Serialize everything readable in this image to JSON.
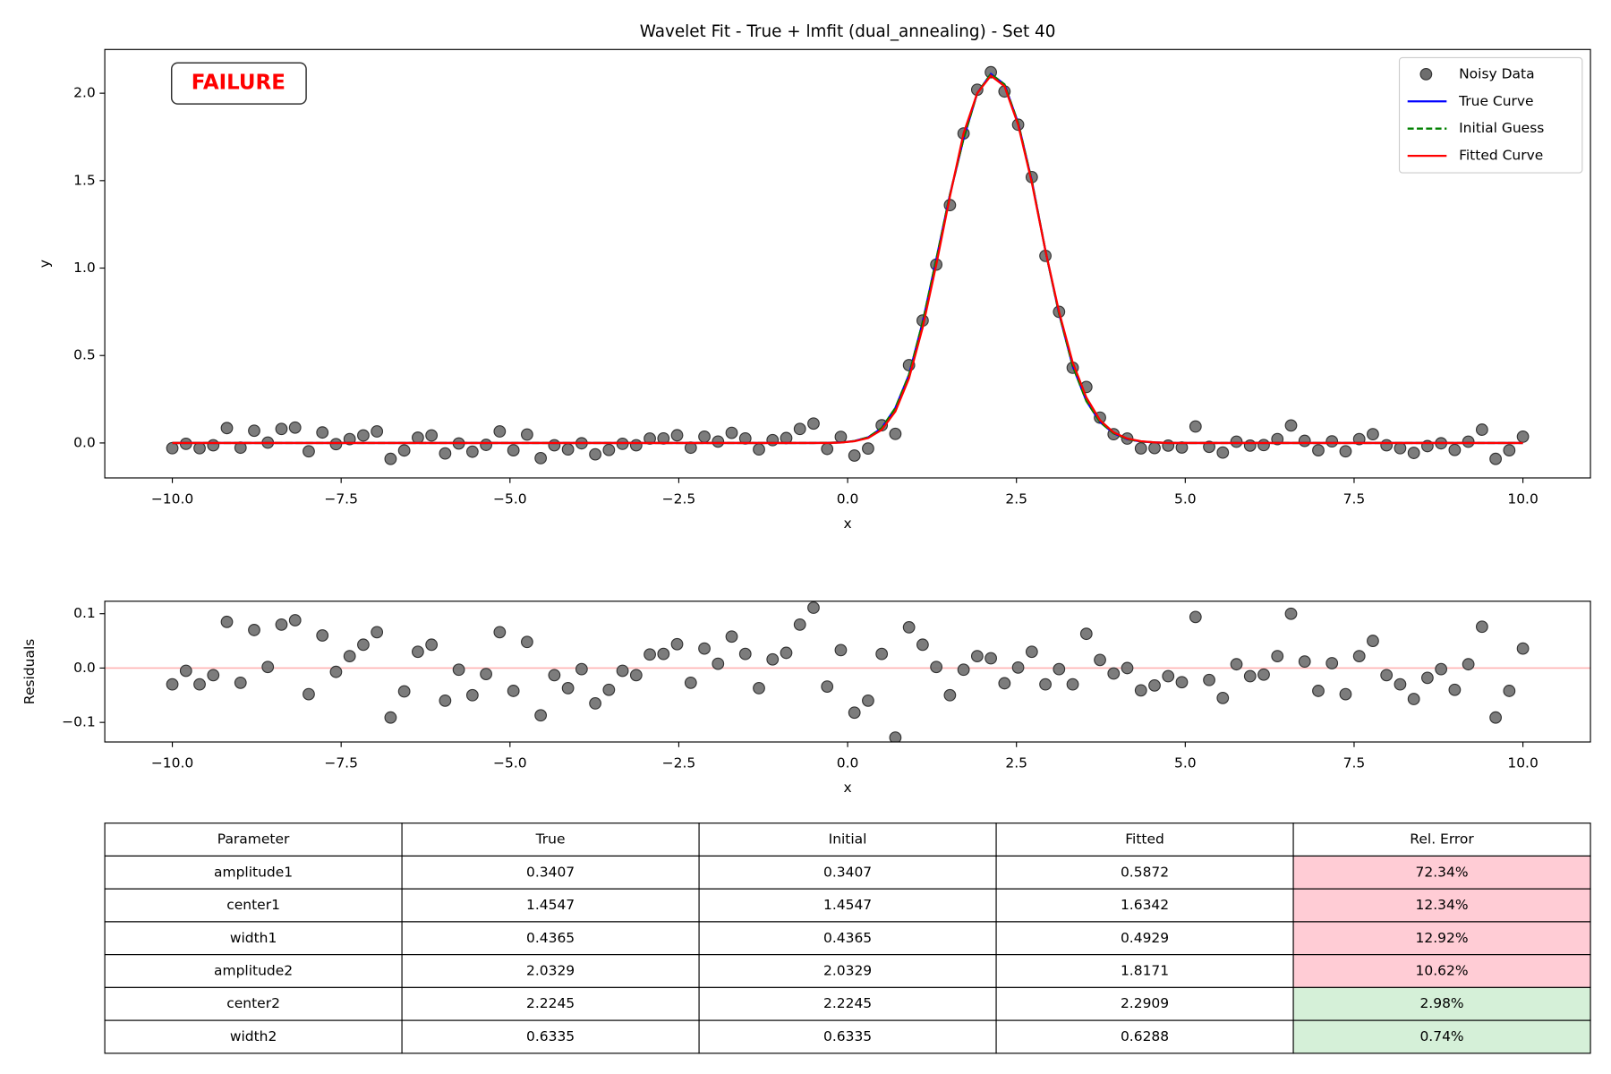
{
  "chart_data": [
    {
      "type": "line",
      "title": "Wavelet Fit - True + lmfit (dual_annealing) - Set 40",
      "xlabel": "x",
      "ylabel": "y",
      "annotation": "FAILURE",
      "annotation_color": "#ff0000",
      "legend": "upper right",
      "grid": false,
      "xlim": [
        -11,
        11
      ],
      "ylim": [
        -0.2,
        2.25
      ],
      "xticks": [
        {
          "value": -10,
          "label": "−10.0"
        },
        {
          "value": -7.5,
          "label": "−7.5"
        },
        {
          "value": -5,
          "label": "−5.0"
        },
        {
          "value": -2.5,
          "label": "−2.5"
        },
        {
          "value": 0,
          "label": "0.0"
        },
        2.5,
        {
          "value": 5,
          "label": "5.0"
        },
        7.5,
        {
          "value": 10,
          "label": "10.0"
        }
      ],
      "yticks": [
        {
          "value": 0,
          "label": "0.0"
        },
        0.5,
        {
          "value": 1,
          "label": "1.0"
        },
        1.5,
        {
          "value": 2,
          "label": "2.0"
        }
      ],
      "x": [
        -10,
        -9.798,
        -9.596,
        -9.394,
        -9.192,
        -8.99,
        -8.788,
        -8.586,
        -8.384,
        -8.182,
        -7.98,
        -7.778,
        -7.576,
        -7.374,
        -7.172,
        -6.97,
        -6.768,
        -6.566,
        -6.364,
        -6.162,
        -5.96,
        -5.758,
        -5.556,
        -5.354,
        -5.152,
        -4.949,
        -4.747,
        -4.545,
        -4.343,
        -4.141,
        -3.939,
        -3.737,
        -3.535,
        -3.333,
        -3.131,
        -2.929,
        -2.727,
        -2.525,
        -2.323,
        -2.121,
        -1.919,
        -1.717,
        -1.515,
        -1.313,
        -1.111,
        -0.909,
        -0.707,
        -0.505,
        -0.303,
        -0.101,
        0.101,
        0.303,
        0.505,
        0.707,
        0.909,
        1.111,
        1.313,
        1.515,
        1.717,
        1.919,
        2.121,
        2.323,
        2.525,
        2.727,
        2.929,
        3.131,
        3.333,
        3.535,
        3.737,
        3.939,
        4.141,
        4.343,
        4.545,
        4.747,
        4.949,
        5.152,
        5.354,
        5.556,
        5.758,
        5.96,
        6.162,
        6.364,
        6.566,
        6.768,
        6.97,
        7.172,
        7.374,
        7.576,
        7.778,
        7.98,
        8.182,
        8.384,
        8.586,
        8.788,
        8.99,
        9.192,
        9.394,
        9.596,
        9.798,
        10
      ],
      "series": [
        {
          "name": "Noisy Data",
          "type": "scatter",
          "color": "#6e6e6e",
          "values": [
            -0.03,
            -0.005,
            -0.03,
            -0.013,
            0.085,
            -0.027,
            0.07,
            0.002,
            0.08,
            0.088,
            -0.048,
            0.06,
            -0.007,
            0.022,
            0.043,
            0.066,
            -0.091,
            -0.043,
            0.03,
            0.043,
            -0.06,
            -0.003,
            -0.05,
            -0.011,
            0.066,
            -0.042,
            0.048,
            -0.087,
            -0.013,
            -0.037,
            -0.002,
            -0.065,
            -0.04,
            -0.005,
            -0.013,
            0.025,
            0.026,
            0.044,
            -0.027,
            0.036,
            0.008,
            0.058,
            0.026,
            -0.037,
            0.016,
            0.028,
            0.08,
            0.111,
            -0.034,
            0.035,
            -0.072,
            -0.032,
            0.101,
            0.052,
            0.445,
            0.7,
            1.02,
            1.36,
            1.77,
            2.02,
            2.12,
            2.01,
            1.82,
            1.52,
            1.07,
            0.75,
            0.43,
            0.32,
            0.145,
            0.05,
            0.025,
            -0.031,
            -0.029,
            -0.015,
            -0.026,
            0.094,
            -0.022,
            -0.055,
            0.007,
            -0.015,
            -0.012,
            0.022,
            0.1,
            0.012,
            -0.042,
            0.009,
            -0.048,
            0.022,
            0.05,
            -0.013,
            -0.03,
            -0.057,
            -0.018,
            -0.002,
            -0.04,
            0.007,
            0.076,
            -0.091,
            -0.042,
            0.036
          ]
        },
        {
          "name": "True Curve",
          "type": "line",
          "linestyle": "solid",
          "color": "#0000ff",
          "values": [
            0,
            0,
            0,
            0,
            0,
            0,
            0,
            0,
            0,
            0,
            0,
            0,
            0,
            0,
            0,
            0,
            0,
            0,
            0,
            0,
            0,
            0,
            0,
            0,
            0,
            0,
            0,
            0,
            0,
            0,
            0,
            0,
            0,
            0,
            0,
            0,
            0,
            0,
            0,
            0,
            0,
            0,
            0,
            0,
            0,
            0,
            0,
            0,
            0.001,
            0.003,
            0.011,
            0.032,
            0.085,
            0.2,
            0.39,
            0.69,
            1.05,
            1.42,
            1.74,
            2.0,
            2.11,
            2.05,
            1.83,
            1.5,
            1.1,
            0.74,
            0.44,
            0.24,
            0.12,
            0.055,
            0.022,
            0.008,
            0.003,
            0,
            0,
            0,
            0,
            0,
            0,
            0,
            0,
            0,
            0,
            0,
            0,
            0,
            0,
            0,
            0,
            0,
            0,
            0,
            0,
            0,
            0,
            0,
            0,
            0,
            0,
            0
          ]
        },
        {
          "name": "Initial Guess",
          "type": "line",
          "linestyle": "dashed",
          "color": "#008000",
          "values": [
            0,
            0,
            0,
            0,
            0,
            0,
            0,
            0,
            0,
            0,
            0,
            0,
            0,
            0,
            0,
            0,
            0,
            0,
            0,
            0,
            0,
            0,
            0,
            0,
            0,
            0,
            0,
            0,
            0,
            0,
            0,
            0,
            0,
            0,
            0,
            0,
            0,
            0,
            0,
            0,
            0,
            0,
            0,
            0,
            0,
            0,
            0,
            0,
            0.001,
            0.003,
            0.011,
            0.032,
            0.085,
            0.2,
            0.39,
            0.69,
            1.05,
            1.42,
            1.74,
            2.0,
            2.11,
            2.05,
            1.83,
            1.5,
            1.1,
            0.74,
            0.44,
            0.24,
            0.12,
            0.055,
            0.022,
            0.008,
            0.003,
            0,
            0,
            0,
            0,
            0,
            0,
            0,
            0,
            0,
            0,
            0,
            0,
            0,
            0,
            0,
            0,
            0,
            0,
            0,
            0,
            0,
            0,
            0,
            0,
            0,
            0,
            0
          ]
        },
        {
          "name": "Fitted Curve",
          "type": "line",
          "linestyle": "solid",
          "color": "#ff0000",
          "values": [
            0,
            0,
            0,
            0,
            0,
            0,
            0,
            0,
            0,
            0,
            0,
            0,
            0,
            0,
            0,
            0,
            0,
            0,
            0,
            0,
            0,
            0,
            0,
            0,
            0,
            0,
            0,
            0,
            0,
            0,
            0,
            0,
            0,
            0,
            0,
            0,
            0,
            0,
            0,
            0,
            0,
            0,
            0,
            0,
            0,
            0,
            0,
            0,
            0,
            0.002,
            0.01,
            0.028,
            0.075,
            0.18,
            0.37,
            0.66,
            1.02,
            1.41,
            1.77,
            2.0,
            2.1,
            2.04,
            1.82,
            1.49,
            1.1,
            0.75,
            0.46,
            0.26,
            0.13,
            0.06,
            0.025,
            0.01,
            0.003,
            0,
            0,
            0,
            0,
            0,
            0,
            0,
            0,
            0,
            0,
            0,
            0,
            0,
            0,
            0,
            0,
            0,
            0,
            0,
            0,
            0,
            0,
            0,
            0,
            0,
            0,
            0
          ]
        }
      ]
    },
    {
      "type": "scatter",
      "xlabel": "x",
      "ylabel": "Residuals",
      "grid": false,
      "color": "#6e6e6e",
      "hline": 0,
      "hline_color": "#ffb3b3",
      "xlim": [
        -11,
        11
      ],
      "ylim": [
        -0.136,
        0.123
      ],
      "xticks": [
        {
          "value": -10,
          "label": "−10.0"
        },
        {
          "value": -7.5,
          "label": "−7.5"
        },
        {
          "value": -5,
          "label": "−5.0"
        },
        {
          "value": -2.5,
          "label": "−2.5"
        },
        {
          "value": 0,
          "label": "0.0"
        },
        2.5,
        {
          "value": 5,
          "label": "5.0"
        },
        7.5,
        {
          "value": 10,
          "label": "10.0"
        }
      ],
      "yticks": [
        {
          "value": -0.1,
          "label": "−0.1"
        },
        {
          "value": 0,
          "label": "0.0"
        },
        0.1
      ],
      "x": [
        -10,
        -9.798,
        -9.596,
        -9.394,
        -9.192,
        -8.99,
        -8.788,
        -8.586,
        -8.384,
        -8.182,
        -7.98,
        -7.778,
        -7.576,
        -7.374,
        -7.172,
        -6.97,
        -6.768,
        -6.566,
        -6.364,
        -6.162,
        -5.96,
        -5.758,
        -5.556,
        -5.354,
        -5.152,
        -4.949,
        -4.747,
        -4.545,
        -4.343,
        -4.141,
        -3.939,
        -3.737,
        -3.535,
        -3.333,
        -3.131,
        -2.929,
        -2.727,
        -2.525,
        -2.323,
        -2.121,
        -1.919,
        -1.717,
        -1.515,
        -1.313,
        -1.111,
        -0.909,
        -0.707,
        -0.505,
        -0.303,
        -0.101,
        0.101,
        0.303,
        0.505,
        0.707,
        0.909,
        1.111,
        1.313,
        1.515,
        1.717,
        1.919,
        2.121,
        2.323,
        2.525,
        2.727,
        2.929,
        3.131,
        3.333,
        3.535,
        3.737,
        3.939,
        4.141,
        4.343,
        4.545,
        4.747,
        4.949,
        5.152,
        5.354,
        5.556,
        5.758,
        5.96,
        6.162,
        6.364,
        6.566,
        6.768,
        6.97,
        7.172,
        7.374,
        7.576,
        7.778,
        7.98,
        8.182,
        8.384,
        8.586,
        8.788,
        8.99,
        9.192,
        9.394,
        9.596,
        9.798,
        10
      ],
      "values": [
        -0.03,
        -0.005,
        -0.03,
        -0.013,
        0.085,
        -0.027,
        0.07,
        0.002,
        0.08,
        0.088,
        -0.048,
        0.06,
        -0.007,
        0.022,
        0.043,
        0.066,
        -0.091,
        -0.043,
        0.03,
        0.043,
        -0.06,
        -0.003,
        -0.05,
        -0.011,
        0.066,
        -0.042,
        0.048,
        -0.087,
        -0.013,
        -0.037,
        -0.002,
        -0.065,
        -0.04,
        -0.005,
        -0.013,
        0.025,
        0.026,
        0.044,
        -0.027,
        0.036,
        0.008,
        0.058,
        0.026,
        -0.037,
        0.016,
        0.028,
        0.08,
        0.111,
        -0.034,
        0.033,
        -0.082,
        -0.06,
        0.026,
        -0.128,
        0.075,
        0.043,
        0.002,
        -0.05,
        -0.003,
        0.022,
        0.018,
        -0.028,
        0.001,
        0.03,
        -0.03,
        -0.002,
        -0.03,
        0.063,
        0.015,
        -0.01,
        0,
        -0.041,
        -0.032,
        -0.015,
        -0.026,
        0.094,
        -0.022,
        -0.055,
        0.007,
        -0.015,
        -0.012,
        0.022,
        0.1,
        0.012,
        -0.042,
        0.009,
        -0.048,
        0.022,
        0.05,
        -0.013,
        -0.03,
        -0.057,
        -0.018,
        -0.002,
        -0.04,
        0.007,
        0.076,
        -0.091,
        -0.042,
        0.036
      ]
    }
  ],
  "table": {
    "columns": [
      "Parameter",
      "True",
      "Initial",
      "Fitted",
      "Rel. Error"
    ],
    "rows": [
      [
        "amplitude1",
        "0.3407",
        "0.3407",
        "0.5872",
        "72.34%"
      ],
      [
        "center1",
        "1.4547",
        "1.4547",
        "1.6342",
        "12.34%"
      ],
      [
        "width1",
        "0.4365",
        "0.4365",
        "0.4929",
        "12.92%"
      ],
      [
        "amplitude2",
        "2.0329",
        "2.0329",
        "1.8171",
        "10.62%"
      ],
      [
        "center2",
        "2.2245",
        "2.2245",
        "2.2909",
        "2.98%"
      ],
      [
        "width2",
        "0.6335",
        "0.6335",
        "0.6288",
        "0.74%"
      ]
    ],
    "highlight_colors": [
      "#ffccd5",
      "#ffccd5",
      "#ffccd5",
      "#ffccd5",
      "#d5f0d8",
      "#d5f0d8"
    ]
  }
}
